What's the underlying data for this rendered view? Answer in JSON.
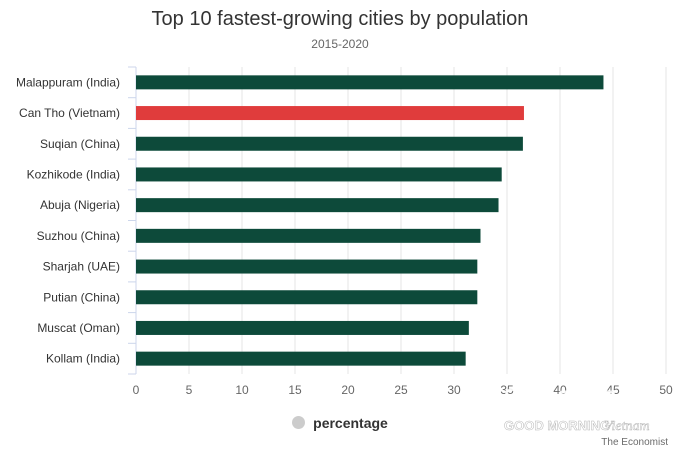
{
  "chart_data": {
    "type": "bar",
    "orientation": "horizontal",
    "title": "Top 10 fastest-growing cities by population",
    "subtitle": "2015-2020",
    "categories": [
      "Malappuram (India)",
      "Can Tho (Vietnam)",
      "Suqian (China)",
      "Kozhikode (India)",
      "Abuja (Nigeria)",
      "Suzhou (China)",
      "Sharjah (UAE)",
      "Putian (China)",
      "Muscat (Oman)",
      "Kollam (India)"
    ],
    "series": [
      {
        "name": "percentage",
        "values": [
          44.1,
          36.6,
          36.5,
          34.5,
          34.2,
          32.5,
          32.2,
          32.2,
          31.4,
          31.1
        ]
      }
    ],
    "highlight_index": 1,
    "colors": {
      "bar": "#0d4a3a",
      "highlight": "#e03c3c",
      "legend_marker": "#cccccc"
    },
    "xlim": [
      0,
      50
    ],
    "xticks": [
      "0",
      "5",
      "10",
      "15",
      "20",
      "25",
      "30",
      "35",
      "40",
      "45",
      "50"
    ],
    "grid": true,
    "legend": "bottom-center"
  },
  "watermark": {
    "logo": "GOOD MORNING Vietnam",
    "source": "The Economist"
  }
}
